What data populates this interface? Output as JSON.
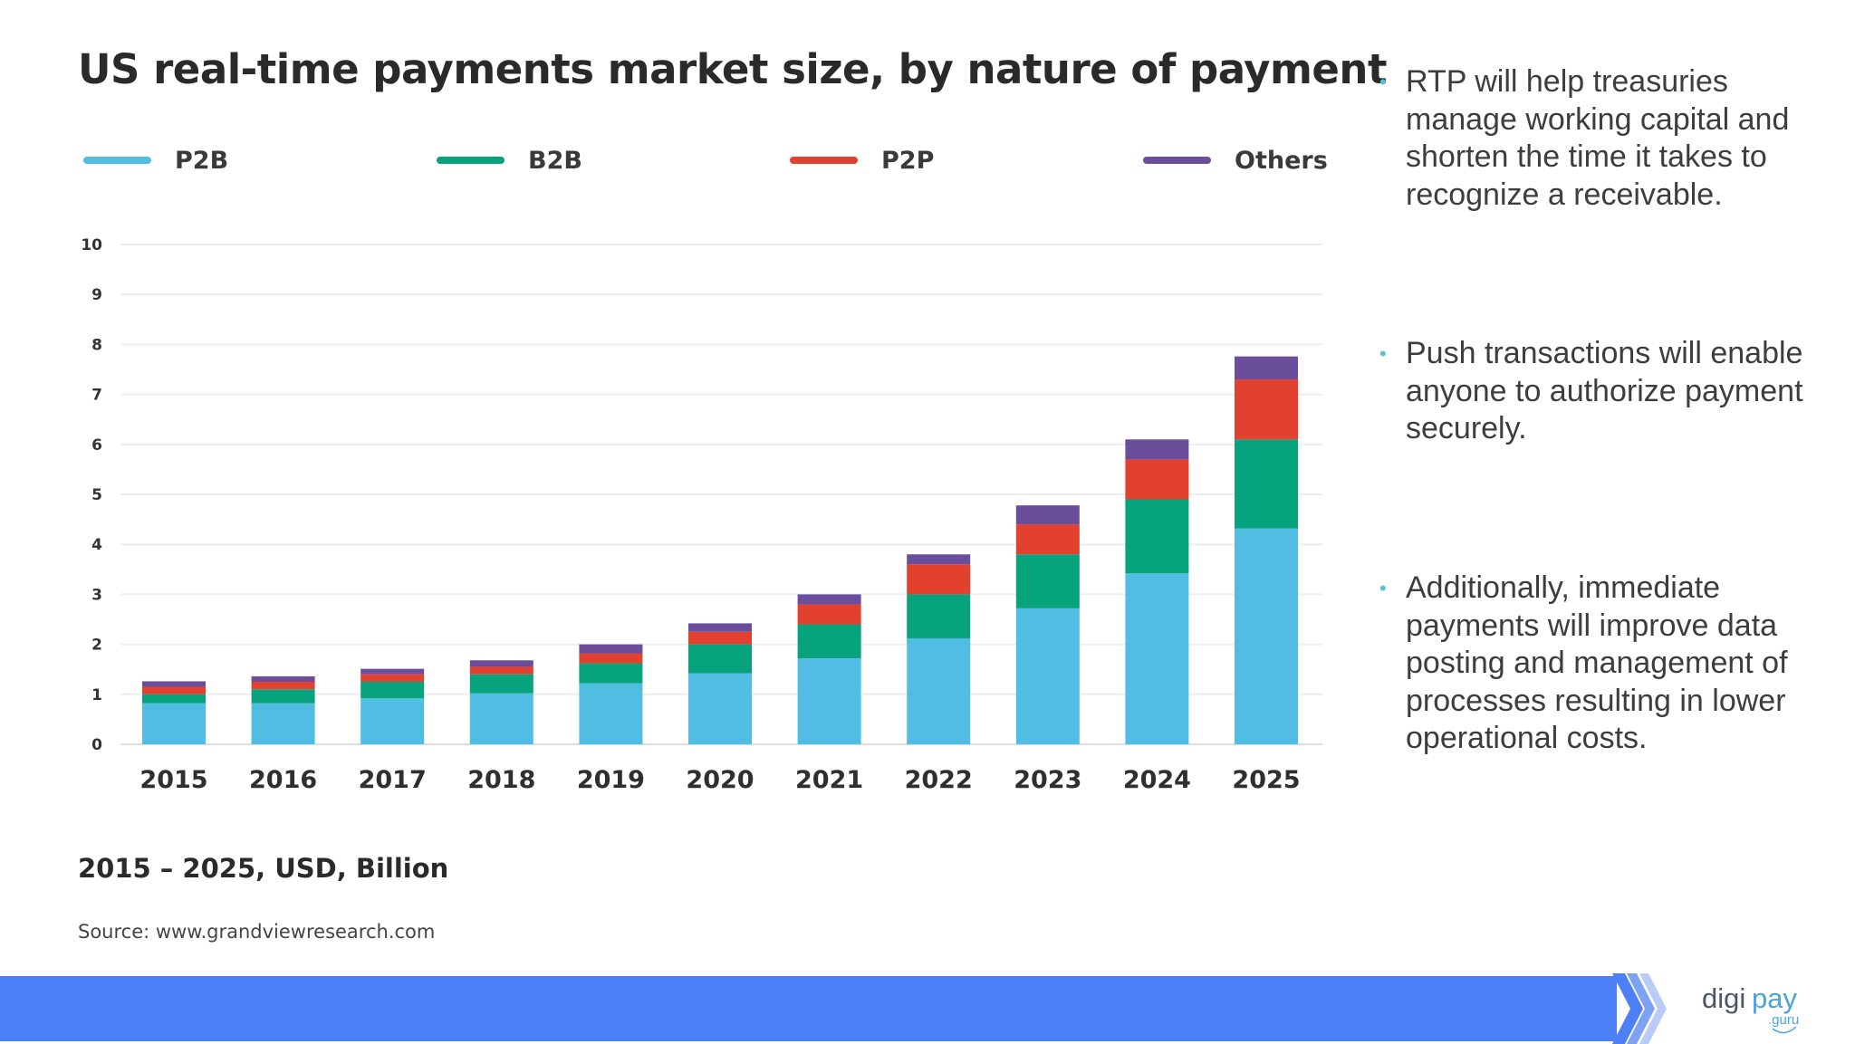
{
  "chart_data": {
    "type": "bar",
    "stacked": true,
    "title": "US real-time payments market size, by nature of payment",
    "subtitle": "2015 – 2025, USD, Billion",
    "source": "Source: www.grandviewresearch.com",
    "categories": [
      "2015",
      "2016",
      "2017",
      "2018",
      "2019",
      "2020",
      "2021",
      "2022",
      "2023",
      "2024",
      "2025"
    ],
    "series": [
      {
        "name": "P2B",
        "color": "#52bde3",
        "values": [
          0.82,
          0.82,
          0.92,
          1.02,
          1.22,
          1.42,
          1.72,
          2.12,
          2.72,
          3.42,
          4.32
        ]
      },
      {
        "name": "B2B",
        "color": "#07a37d",
        "values": [
          0.18,
          0.28,
          0.33,
          0.38,
          0.4,
          0.58,
          0.68,
          0.88,
          1.08,
          1.48,
          1.78
        ]
      },
      {
        "name": "P2P",
        "color": "#e2412f",
        "values": [
          0.15,
          0.15,
          0.15,
          0.15,
          0.2,
          0.25,
          0.4,
          0.6,
          0.6,
          0.8,
          1.2
        ]
      },
      {
        "name": "Others",
        "color": "#6b4e9b",
        "values": [
          0.11,
          0.11,
          0.11,
          0.13,
          0.18,
          0.17,
          0.2,
          0.2,
          0.38,
          0.4,
          0.46
        ]
      }
    ],
    "ylim": [
      0,
      10
    ],
    "yticks": [
      "0",
      "1",
      "2",
      "3",
      "4",
      "5",
      "6",
      "7",
      "8",
      "9",
      "10"
    ],
    "xlabel": "",
    "ylabel": "",
    "grid": true,
    "legend_position": "top"
  },
  "bullets": [
    "RTP will help treasuries manage working capital and shorten the time it takes to recognize a receivable.",
    "Push transactions will enable anyone to authorize payment securely.",
    "Additionally, immediate payments will improve data posting and management of processes resulting in lower operational costs."
  ],
  "bullet_marker": "•",
  "logo": {
    "text_a": "digi",
    "text_b": "pay",
    "sub": ".guru"
  },
  "colors": {
    "footer": "#4d7ff6",
    "chevron_light": "#b9ccf7",
    "chevron_mid": "#7ea2f3",
    "logo_dark": "#4a5568",
    "logo_accent": "#4aa3df",
    "bullet": "#5bbfd6"
  }
}
